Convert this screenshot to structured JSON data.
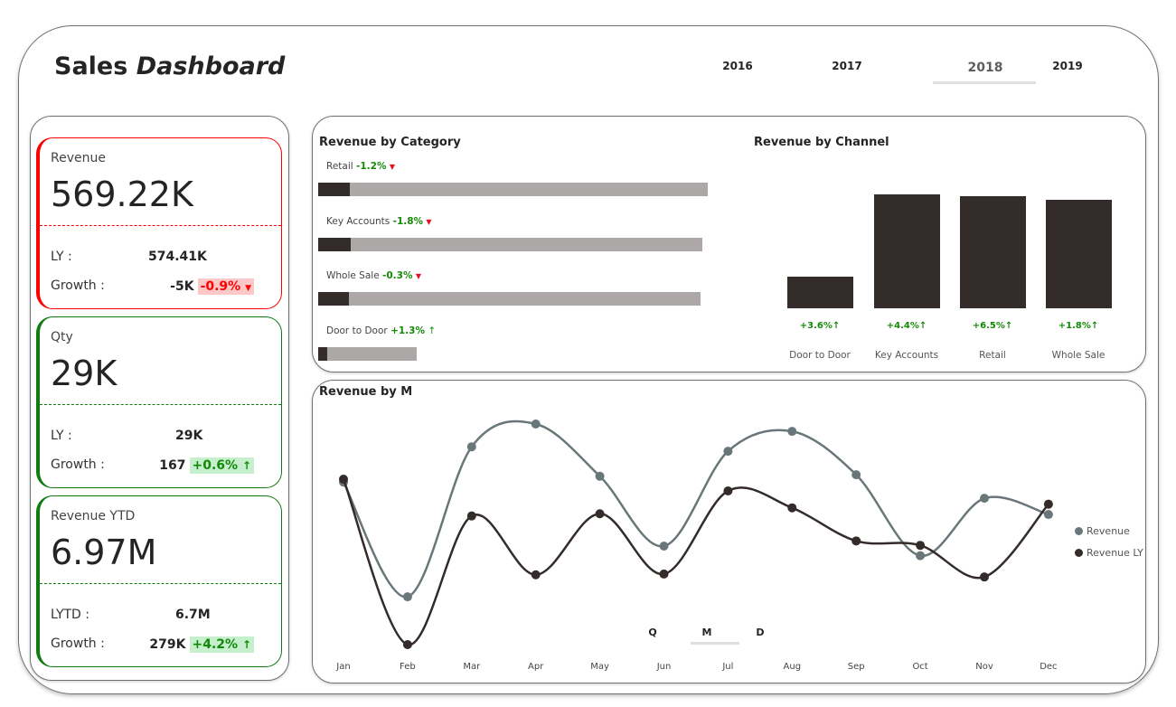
{
  "header": {
    "title_plain": "Sales",
    "title_italic": "Dashboard",
    "years": [
      "2016",
      "2017",
      "2018",
      "2019"
    ],
    "selected_year": "2018"
  },
  "kpis": [
    {
      "label": "Revenue",
      "value": "569.22K",
      "row1_label": "LY :",
      "row1_value": "574.41K",
      "row2_label": "Growth :",
      "row2_value": "-5K",
      "row2_pct": "-0.9%",
      "row2_icon": "▼",
      "color": "#ff0000",
      "badge_bg": "#ffc8c8",
      "pct_color": "#ff0000"
    },
    {
      "label": "Qty",
      "value": "29K",
      "row1_label": "LY :",
      "row1_value": "29K",
      "row2_label": "Growth :",
      "row2_value": "167",
      "row2_pct": "+0.6%",
      "row2_icon": "↑",
      "color": "#107c10",
      "badge_bg": "#c6efce",
      "pct_color": "#138a07"
    },
    {
      "label": "Revenue YTD",
      "value": "6.97M",
      "row1_label": "LYTD :",
      "row1_value": "6.7M",
      "row2_label": "Growth :",
      "row2_value": "279K",
      "row2_pct": "+4.2%",
      "row2_icon": "↑",
      "color": "#107c10",
      "badge_bg": "#c6efce",
      "pct_color": "#138a07"
    }
  ],
  "category": {
    "title": "Revenue by Category",
    "items": [
      {
        "label": "Retail",
        "pct": "-1.2%",
        "icon": "▼",
        "dir": "dn",
        "total": 100,
        "highlight": 8.1
      },
      {
        "label": "Key Accounts",
        "pct": "-1.8%",
        "icon": "▼",
        "dir": "dn",
        "total": 98.6,
        "highlight": 8.4
      },
      {
        "label": "Whole Sale",
        "pct": "-0.3%",
        "icon": "▼",
        "dir": "dn",
        "total": 98.1,
        "highlight": 7.8
      },
      {
        "label": "Door to Door",
        "pct": "+1.3%",
        "icon": "↑",
        "dir": "up",
        "total": 25.3,
        "highlight": 2.3
      }
    ]
  },
  "channel": {
    "title": "Revenue by Channel",
    "items": [
      {
        "label": "Door to Door",
        "pct": "+3.6%↑",
        "value": 50
      },
      {
        "label": "Key Accounts",
        "pct": "+4.4%↑",
        "value": 180
      },
      {
        "label": "Retail",
        "pct": "+6.5%↑",
        "value": 177
      },
      {
        "label": "Whole Sale",
        "pct": "+1.8%↑",
        "value": 171
      }
    ]
  },
  "chart_data": {
    "type": "line",
    "title": "Revenue by M",
    "categories": [
      "Jan",
      "Feb",
      "Mar",
      "Apr",
      "May",
      "Jun",
      "Jul",
      "Aug",
      "Sep",
      "Oct",
      "Nov",
      "Dec"
    ],
    "series": [
      {
        "name": "Revenue",
        "color": "#69777a",
        "values": [
          621,
          465,
          669,
          700,
          629,
          534,
          663,
          690,
          631,
          521,
          599,
          577
        ]
      },
      {
        "name": "Revenue LY",
        "color": "#342b2b",
        "values": [
          625,
          400,
          575,
          495,
          578,
          496,
          609,
          586,
          541,
          535,
          492,
          591
        ]
      }
    ],
    "ylim": [
      380,
      720
    ],
    "legend": "right"
  },
  "drill": {
    "options": [
      "Q",
      "M",
      "D"
    ],
    "selected": "M"
  }
}
